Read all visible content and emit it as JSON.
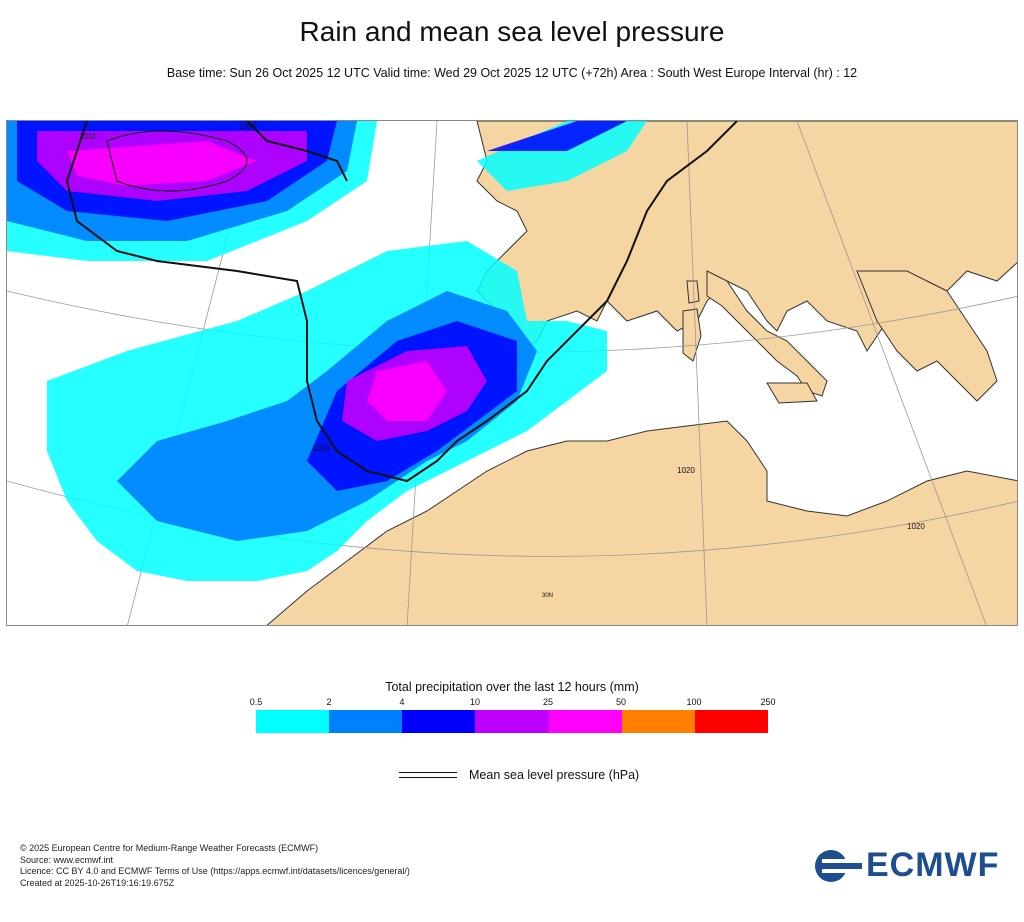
{
  "title": "Rain and mean sea level pressure",
  "subtitle": "Base time: Sun 26 Oct 2025 12 UTC Valid time: Wed 29 Oct 2025 12 UTC (+72h) Area : South West Europe Interval (hr) : 12",
  "map": {
    "isobar_labels": [
      "1000",
      "1010",
      "1020",
      "1020",
      "1010"
    ],
    "graticule_label": "30N"
  },
  "legend": {
    "title": "Total precipitation over the last 12 hours (mm)",
    "ticks": [
      "0.5",
      "2",
      "4",
      "10",
      "25",
      "50",
      "100",
      "250"
    ],
    "colors": [
      "#00ffff",
      "#0080ff",
      "#0000ff",
      "#c000ff",
      "#ff00ff",
      "#ff8000",
      "#ff0000"
    ],
    "mslp_label": "Mean sea level pressure (hPa)"
  },
  "footer": {
    "line1": "© 2025 European Centre for Medium-Range Weather Forecasts (ECMWF)",
    "line2": "Source: www.ecmwf.int",
    "line3": "Licence: CC BY 4.0 and ECMWF Terms of Use (https://apps.ecmwf.int/datasets/licences/general/)",
    "line4": "Created at 2025-10-26T19:16:19.675Z"
  },
  "logo": {
    "text": "ECMWF",
    "color": "#1e4e8f"
  }
}
